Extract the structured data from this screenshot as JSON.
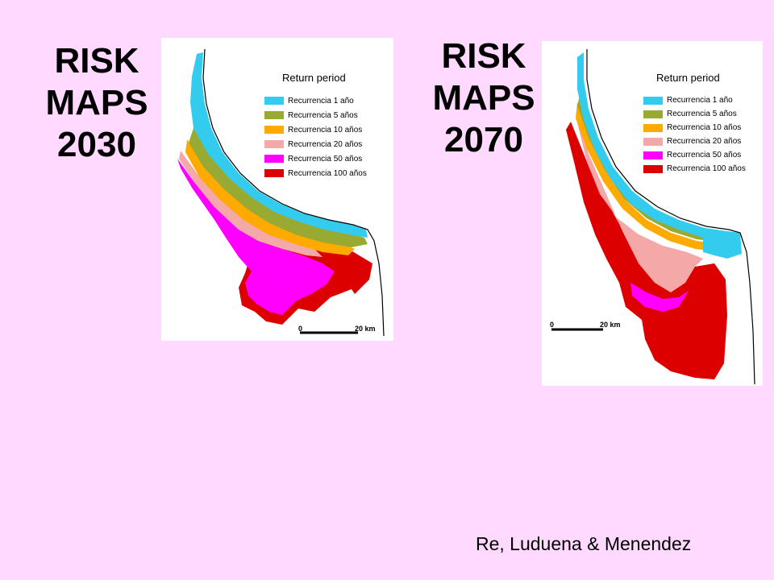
{
  "slide": {
    "title_left": [
      "RISK",
      "MAPS",
      "2030"
    ],
    "title_right": [
      "RISK",
      "MAPS",
      "2070"
    ],
    "credit": "Re, Luduena & Menendez"
  },
  "legend": {
    "title": "Return period",
    "items": [
      {
        "label": "Recurrencia 1 año",
        "color": "#33ccee"
      },
      {
        "label": "Recurrencia 5 años",
        "color": "#99aa33"
      },
      {
        "label": "Recurrencia 10 años",
        "color": "#ffaa00"
      },
      {
        "label": "Recurrencia 20 años",
        "color": "#f5a8a8"
      },
      {
        "label": "Recurrencia 50 años",
        "color": "#ff00ff"
      },
      {
        "label": "Recurrencia 100 años",
        "color": "#dd0000"
      }
    ]
  },
  "maps": [
    {
      "id": "2030",
      "scale": {
        "start": "0",
        "end": "20 km"
      }
    },
    {
      "id": "2070",
      "scale": {
        "start": "0",
        "end": "20 km"
      }
    }
  ]
}
